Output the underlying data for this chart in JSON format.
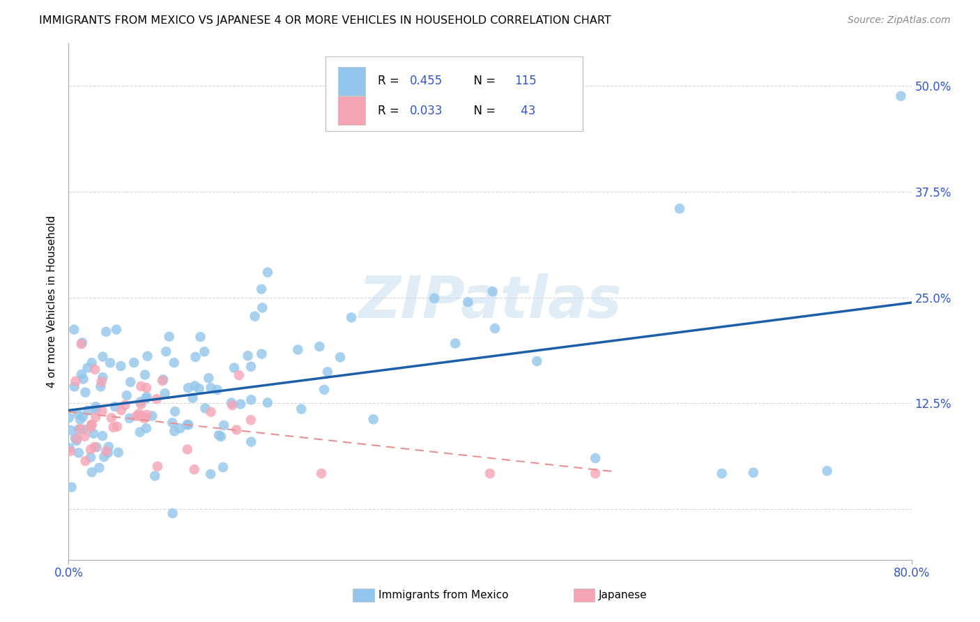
{
  "title": "IMMIGRANTS FROM MEXICO VS JAPANESE 4 OR MORE VEHICLES IN HOUSEHOLD CORRELATION CHART",
  "source": "Source: ZipAtlas.com",
  "ylabel": "4 or more Vehicles in Household",
  "xlim": [
    0.0,
    0.8
  ],
  "ylim": [
    -0.06,
    0.55
  ],
  "ytick_vals": [
    0.0,
    0.125,
    0.25,
    0.375,
    0.5
  ],
  "ytick_labels_right": [
    "",
    "12.5%",
    "25.0%",
    "37.5%",
    "50.0%"
  ],
  "xtick_left_label": "0.0%",
  "xtick_right_label": "80.0%",
  "color_mexico": "#93C6EC",
  "color_japan": "#F4A4B5",
  "color_mexico_line": "#1B5FAA",
  "color_japan_line": "#E89090",
  "color_blue_text": "#3355CC",
  "watermark_text": "ZIPatlas",
  "legend_label1": "R = 0.455",
  "legend_n1": "N = 115",
  "legend_label2": "R = 0.033",
  "legend_n2": "N =  43",
  "bottom_label1": "Immigrants from Mexico",
  "bottom_label2": "Japanese",
  "seed_mexico": 10,
  "seed_japan": 20,
  "n_mexico": 115,
  "n_japan": 43,
  "r_mexico": 0.455,
  "r_japan": 0.033
}
